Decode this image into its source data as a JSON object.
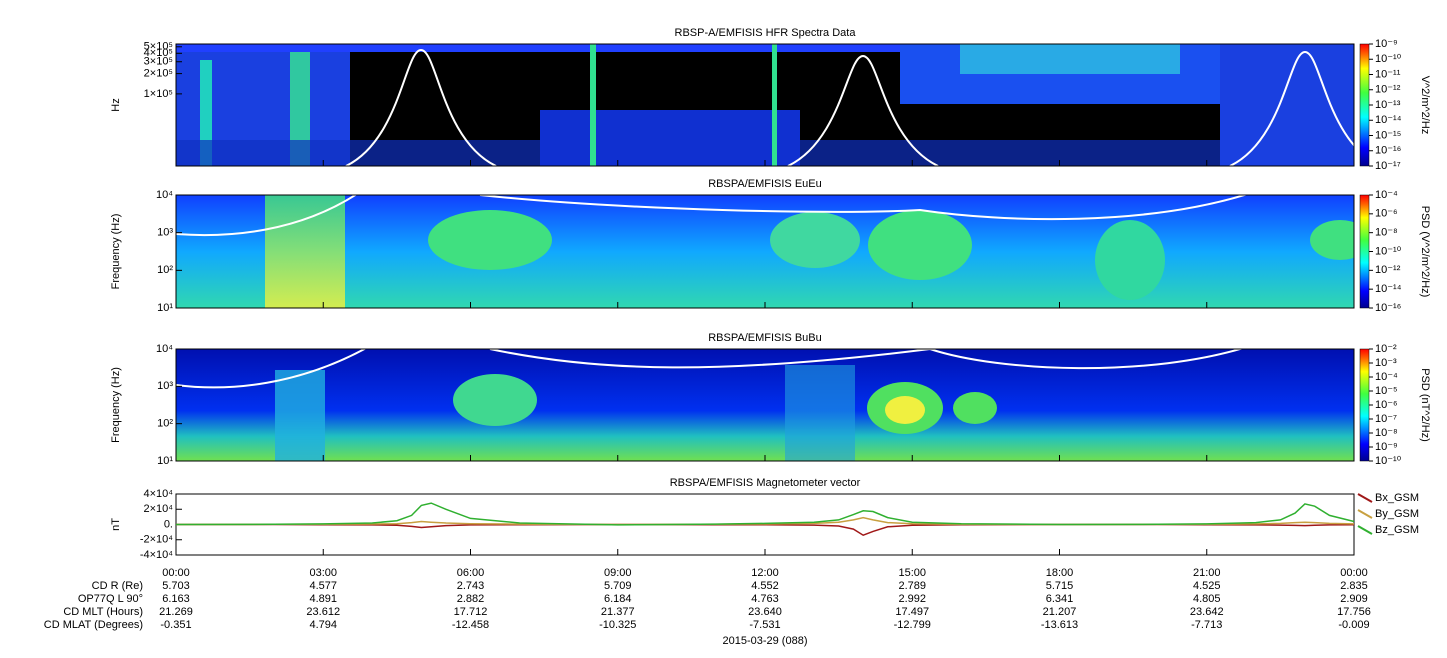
{
  "chart_data": [
    {
      "type": "spectrogram",
      "title": "RBSP-A/EMFISIS  HFR Spectra Data",
      "y_label": "Hz",
      "log_y": true,
      "ylim": [
        8500,
        550000
      ],
      "yticks": [
        {
          "value": 100000,
          "label": "1×10⁵"
        },
        {
          "value": 200000,
          "label": "2×10⁵"
        },
        {
          "value": 300000,
          "label": "3×10⁵"
        },
        {
          "value": 400000,
          "label": "4×10⁵"
        },
        {
          "value": 500000,
          "label": "5×10⁵"
        }
      ],
      "colorbar": {
        "label": "V^2/m^2/Hz",
        "zlim": [
          1e-17,
          1e-09
        ],
        "ticks": [
          {
            "value": 1e-09,
            "label": "10⁻⁹"
          },
          {
            "value": 1e-10,
            "label": "10⁻¹⁰"
          },
          {
            "value": 1e-11,
            "label": "10⁻¹¹"
          },
          {
            "value": 1e-12,
            "label": "10⁻¹²"
          },
          {
            "value": 1e-13,
            "label": "10⁻¹³"
          },
          {
            "value": 1e-14,
            "label": "10⁻¹⁴"
          },
          {
            "value": 1e-15,
            "label": "10⁻¹⁵"
          },
          {
            "value": 1e-16,
            "label": "10⁻¹⁶"
          },
          {
            "value": 1e-17,
            "label": "10⁻¹⁷"
          }
        ]
      }
    },
    {
      "type": "spectrogram",
      "title": "RBSPA/EMFISIS  EuEu",
      "y_label": "Frequency (Hz)",
      "log_y": true,
      "ylim": [
        10,
        10000
      ],
      "yticks": [
        {
          "value": 10,
          "label": "10¹"
        },
        {
          "value": 100,
          "label": "10²"
        },
        {
          "value": 1000,
          "label": "10³"
        },
        {
          "value": 10000,
          "label": "10⁴"
        }
      ],
      "colorbar": {
        "label": "PSD (V^2/m^2/Hz)",
        "zlim": [
          1e-16,
          0.0001
        ],
        "ticks": [
          {
            "value": 0.0001,
            "label": "10⁻⁴"
          },
          {
            "value": 1e-06,
            "label": "10⁻⁶"
          },
          {
            "value": 1e-08,
            "label": "10⁻⁸"
          },
          {
            "value": 1e-10,
            "label": "10⁻¹⁰"
          },
          {
            "value": 1e-12,
            "label": "10⁻¹²"
          },
          {
            "value": 1e-14,
            "label": "10⁻¹⁴"
          },
          {
            "value": 1e-16,
            "label": "10⁻¹⁶"
          }
        ]
      }
    },
    {
      "type": "spectrogram",
      "title": "RBSPA/EMFISIS  BuBu",
      "y_label": "Frequency (Hz)",
      "log_y": true,
      "ylim": [
        10,
        10000
      ],
      "yticks": [
        {
          "value": 10,
          "label": "10¹"
        },
        {
          "value": 100,
          "label": "10²"
        },
        {
          "value": 1000,
          "label": "10³"
        },
        {
          "value": 10000,
          "label": "10⁴"
        }
      ],
      "colorbar": {
        "label": "PSD (nT^2/Hz)",
        "zlim": [
          1e-10,
          0.01
        ],
        "ticks": [
          {
            "value": 0.01,
            "label": "10⁻²"
          },
          {
            "value": 0.001,
            "label": "10⁻³"
          },
          {
            "value": 0.0001,
            "label": "10⁻⁴"
          },
          {
            "value": 1e-05,
            "label": "10⁻⁵"
          },
          {
            "value": 1e-06,
            "label": "10⁻⁶"
          },
          {
            "value": 1e-07,
            "label": "10⁻⁷"
          },
          {
            "value": 1e-08,
            "label": "10⁻⁸"
          },
          {
            "value": 1e-09,
            "label": "10⁻⁹"
          },
          {
            "value": 1e-10,
            "label": "10⁻¹⁰"
          }
        ]
      }
    },
    {
      "type": "line",
      "title": "RBSPA/EMFISIS  Magnetometer vector",
      "y_label": "nT",
      "xlim": [
        0,
        24
      ],
      "xticks": [
        {
          "value": 0,
          "label": "00:00"
        },
        {
          "value": 3,
          "label": "03:00"
        },
        {
          "value": 6,
          "label": "06:00"
        },
        {
          "value": 9,
          "label": "09:00"
        },
        {
          "value": 12,
          "label": "12:00"
        },
        {
          "value": 15,
          "label": "15:00"
        },
        {
          "value": 18,
          "label": "18:00"
        },
        {
          "value": 21,
          "label": "21:00"
        },
        {
          "value": 24,
          "label": "00:00"
        }
      ],
      "ylim": [
        -40000,
        40000
      ],
      "yticks": [
        {
          "value": -40000,
          "label": "-4×10⁴"
        },
        {
          "value": -20000,
          "label": "-2×10⁴"
        },
        {
          "value": 0,
          "label": "0."
        },
        {
          "value": 20000,
          "label": "2×10⁴"
        },
        {
          "value": 40000,
          "label": "4×10⁴"
        }
      ],
      "x": [
        0,
        2,
        3,
        4,
        4.5,
        4.8,
        5,
        5.2,
        5.5,
        6,
        7,
        9,
        11,
        12,
        13,
        13.5,
        13.8,
        14,
        14.2,
        14.5,
        15,
        16,
        18,
        20,
        21,
        22,
        22.5,
        22.8,
        23,
        23.2,
        23.5,
        24
      ],
      "series": [
        {
          "name": "Bx_GSM",
          "color": "#a01818",
          "values": [
            0,
            0,
            -200,
            -500,
            -1000,
            -2500,
            -4000,
            -3000,
            -1500,
            -500,
            -200,
            0,
            -200,
            -300,
            -800,
            -2000,
            -6000,
            -14000,
            -9000,
            -3000,
            -1000,
            -300,
            0,
            0,
            -200,
            -500,
            -800,
            -1200,
            -1500,
            -1000,
            -500,
            -300
          ]
        },
        {
          "name": "By_GSM",
          "color": "#c8a040",
          "values": [
            0,
            200,
            300,
            600,
            1000,
            2500,
            4000,
            3000,
            2000,
            1000,
            500,
            0,
            300,
            600,
            1500,
            3000,
            6000,
            9000,
            6000,
            2500,
            1000,
            400,
            0,
            100,
            300,
            800,
            1500,
            2500,
            3000,
            2500,
            1500,
            800
          ]
        },
        {
          "name": "Bz_GSM",
          "color": "#30b030",
          "values": [
            0,
            300,
            800,
            2000,
            5000,
            12000,
            25000,
            28000,
            20000,
            8000,
            2000,
            -500,
            500,
            1500,
            3000,
            6000,
            13000,
            18000,
            17000,
            9000,
            3000,
            1000,
            0,
            300,
            800,
            2500,
            6000,
            15000,
            27000,
            24000,
            12000,
            4000
          ]
        }
      ]
    }
  ],
  "ephemeris": {
    "rows": [
      {
        "label": "CD R (Re)",
        "values": [
          "5.703",
          "4.577",
          "2.743",
          "5.709",
          "4.552",
          "2.789",
          "5.715",
          "4.525",
          "2.835"
        ]
      },
      {
        "label": "OP77Q L 90°",
        "values": [
          "6.163",
          "4.891",
          "2.882",
          "6.184",
          "4.763",
          "2.992",
          "6.341",
          "4.805",
          "2.909"
        ]
      },
      {
        "label": "CD MLT (Hours)",
        "values": [
          "21.269",
          "23.612",
          "17.712",
          "21.377",
          "23.640",
          "17.497",
          "21.207",
          "23.642",
          "17.756"
        ]
      },
      {
        "label": "CD MLAT (Degrees)",
        "values": [
          "-0.351",
          "4.794",
          "-12.458",
          "-10.325",
          "-7.531",
          "-12.799",
          "-13.613",
          "-7.713",
          "-0.009"
        ]
      }
    ],
    "date": "2015-03-29 (088)"
  }
}
